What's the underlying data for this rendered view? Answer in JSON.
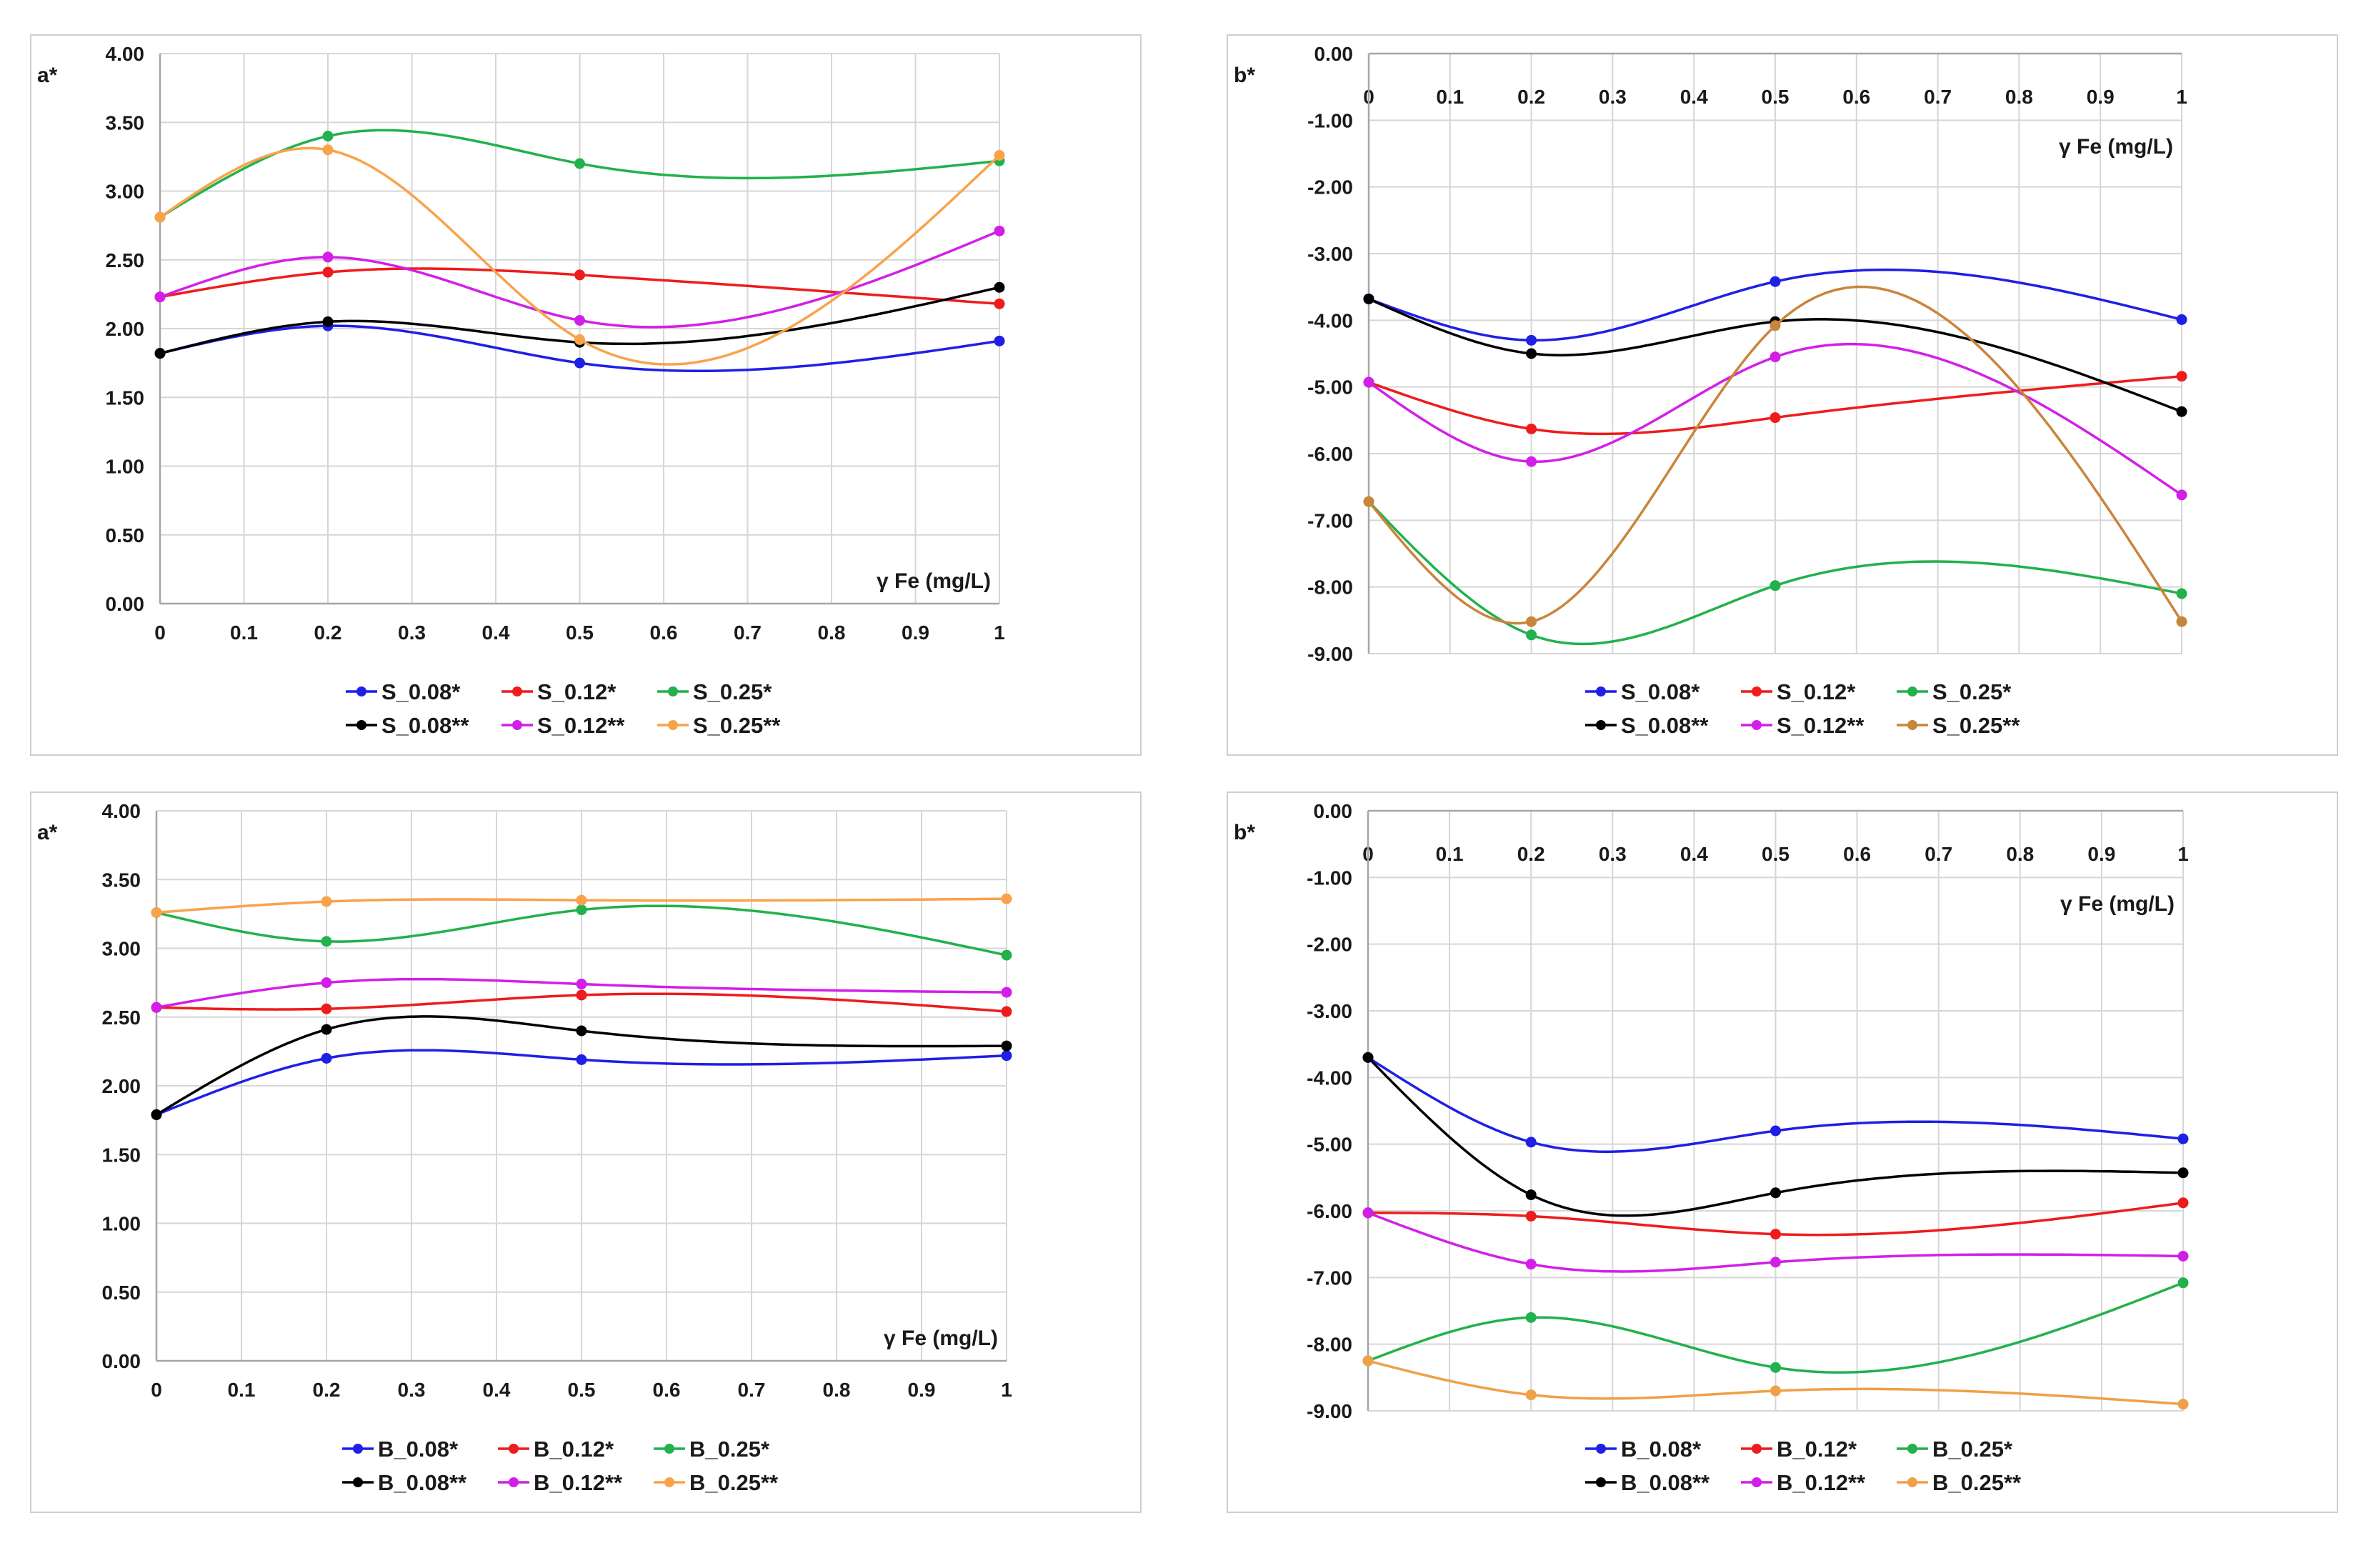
{
  "chart_data": [
    {
      "type": "line",
      "ylabel": "a*",
      "xlabel": "γ Fe (mg/L)",
      "x": [
        0,
        0.2,
        0.5,
        1
      ],
      "xticks": [
        "0",
        "0.1",
        "0.2",
        "0.3",
        "0.4",
        "0.5",
        "0.6",
        "0.7",
        "0.8",
        "0.9",
        "1"
      ],
      "yticks": [
        "4.00",
        "3.50",
        "3.00",
        "2.50",
        "2.00",
        "1.50",
        "1.00",
        "0.50",
        "0.00"
      ],
      "xlim": [
        0,
        1
      ],
      "ylim": [
        0,
        4
      ],
      "x_axis_position": "bottom",
      "grid": true,
      "legend_position": "bottom",
      "series": [
        {
          "name": "S_0.08*",
          "color": "#1f1fe6",
          "values": [
            1.82,
            2.02,
            1.75,
            1.91
          ]
        },
        {
          "name": "S_0.12*",
          "color": "#ee1c1c",
          "values": [
            2.23,
            2.41,
            2.39,
            2.18
          ]
        },
        {
          "name": "S_0.25*",
          "color": "#22b14c",
          "values": [
            2.81,
            3.4,
            3.2,
            3.22
          ]
        },
        {
          "name": "S_0.08**",
          "color": "#000000",
          "values": [
            1.82,
            2.05,
            1.9,
            2.3
          ]
        },
        {
          "name": "S_0.12**",
          "color": "#d21fe8",
          "values": [
            2.23,
            2.52,
            2.06,
            2.71
          ]
        },
        {
          "name": "S_0.25**",
          "color": "#f8a34a",
          "values": [
            2.81,
            3.3,
            1.92,
            3.26
          ]
        }
      ]
    },
    {
      "type": "line",
      "ylabel": "b*",
      "xlabel": "γ Fe (mg/L)",
      "x": [
        0,
        0.2,
        0.5,
        1
      ],
      "xticks": [
        "0",
        "0.1",
        "0.2",
        "0.3",
        "0.4",
        "0.5",
        "0.6",
        "0.7",
        "0.8",
        "0.9",
        "1"
      ],
      "yticks": [
        "0.00",
        "-1.00",
        "-2.00",
        "-3.00",
        "-4.00",
        "-5.00",
        "-6.00",
        "-7.00",
        "-8.00",
        "-9.00"
      ],
      "xlim": [
        0,
        1
      ],
      "ylim": [
        -9,
        0
      ],
      "x_axis_position": "top",
      "grid": true,
      "legend_position": "bottom",
      "series": [
        {
          "name": "S_0.08*",
          "color": "#1f1fe6",
          "values": [
            -3.68,
            -4.3,
            -3.42,
            -3.99
          ]
        },
        {
          "name": "S_0.12*",
          "color": "#ee1c1c",
          "values": [
            -4.93,
            -5.63,
            -5.46,
            -4.84
          ]
        },
        {
          "name": "S_0.25*",
          "color": "#22b14c",
          "values": [
            -6.72,
            -8.72,
            -7.98,
            -8.1
          ]
        },
        {
          "name": "S_0.08**",
          "color": "#000000",
          "values": [
            -3.68,
            -4.5,
            -4.02,
            -5.37
          ]
        },
        {
          "name": "S_0.12**",
          "color": "#d21fe8",
          "values": [
            -4.93,
            -6.12,
            -4.55,
            -6.62
          ]
        },
        {
          "name": "S_0.25**",
          "color": "#c8853c",
          "values": [
            -6.72,
            -8.52,
            -4.08,
            -8.52
          ]
        }
      ]
    },
    {
      "type": "line",
      "ylabel": "a*",
      "xlabel": "γ Fe (mg/L)",
      "x": [
        0,
        0.2,
        0.5,
        1
      ],
      "xticks": [
        "0",
        "0.1",
        "0.2",
        "0.3",
        "0.4",
        "0.5",
        "0.6",
        "0.7",
        "0.8",
        "0.9",
        "1"
      ],
      "yticks": [
        "4.00",
        "3.50",
        "3.00",
        "2.50",
        "2.00",
        "1.50",
        "1.00",
        "0.50",
        "0.00"
      ],
      "xlim": [
        0,
        1
      ],
      "ylim": [
        0,
        4
      ],
      "x_axis_position": "bottom",
      "grid": true,
      "legend_position": "bottom",
      "series": [
        {
          "name": "B_0.08*",
          "color": "#1f1fe6",
          "values": [
            1.79,
            2.2,
            2.19,
            2.22
          ]
        },
        {
          "name": "B_0.12*",
          "color": "#ee1c1c",
          "values": [
            2.57,
            2.56,
            2.66,
            2.54
          ]
        },
        {
          "name": "B_0.25*",
          "color": "#22b14c",
          "values": [
            3.26,
            3.05,
            3.28,
            2.95
          ]
        },
        {
          "name": "B_0.08**",
          "color": "#000000",
          "values": [
            1.79,
            2.41,
            2.4,
            2.29
          ]
        },
        {
          "name": "B_0.12**",
          "color": "#d21fe8",
          "values": [
            2.57,
            2.75,
            2.74,
            2.68
          ]
        },
        {
          "name": "B_0.25**",
          "color": "#f8a34a",
          "values": [
            3.26,
            3.34,
            3.35,
            3.36
          ]
        }
      ]
    },
    {
      "type": "line",
      "ylabel": "b*",
      "xlabel": "γ Fe (mg/L)",
      "x": [
        0,
        0.2,
        0.5,
        1
      ],
      "xticks": [
        "0",
        "0.1",
        "0.2",
        "0.3",
        "0.4",
        "0.5",
        "0.6",
        "0.7",
        "0.8",
        "0.9",
        "1"
      ],
      "yticks": [
        "0.00",
        "-1.00",
        "-2.00",
        "-3.00",
        "-4.00",
        "-5.00",
        "-6.00",
        "-7.00",
        "-8.00",
        "-9.00"
      ],
      "xlim": [
        0,
        1
      ],
      "ylim": [
        -9,
        0
      ],
      "x_axis_position": "top",
      "grid": true,
      "legend_position": "bottom",
      "series": [
        {
          "name": "B_0.08*",
          "color": "#1f1fe6",
          "values": [
            -3.7,
            -4.97,
            -4.8,
            -4.92
          ]
        },
        {
          "name": "B_0.12*",
          "color": "#ee1c1c",
          "values": [
            -6.03,
            -6.08,
            -6.35,
            -5.88
          ]
        },
        {
          "name": "B_0.25*",
          "color": "#22b14c",
          "values": [
            -8.25,
            -7.6,
            -8.35,
            -7.08
          ]
        },
        {
          "name": "B_0.08**",
          "color": "#000000",
          "values": [
            -3.7,
            -5.76,
            -5.73,
            -5.43
          ]
        },
        {
          "name": "B_0.12**",
          "color": "#d21fe8",
          "values": [
            -6.03,
            -6.8,
            -6.77,
            -6.68
          ]
        },
        {
          "name": "B_0.25**",
          "color": "#f0a048",
          "values": [
            -8.25,
            -8.76,
            -8.7,
            -8.9
          ]
        }
      ]
    }
  ]
}
